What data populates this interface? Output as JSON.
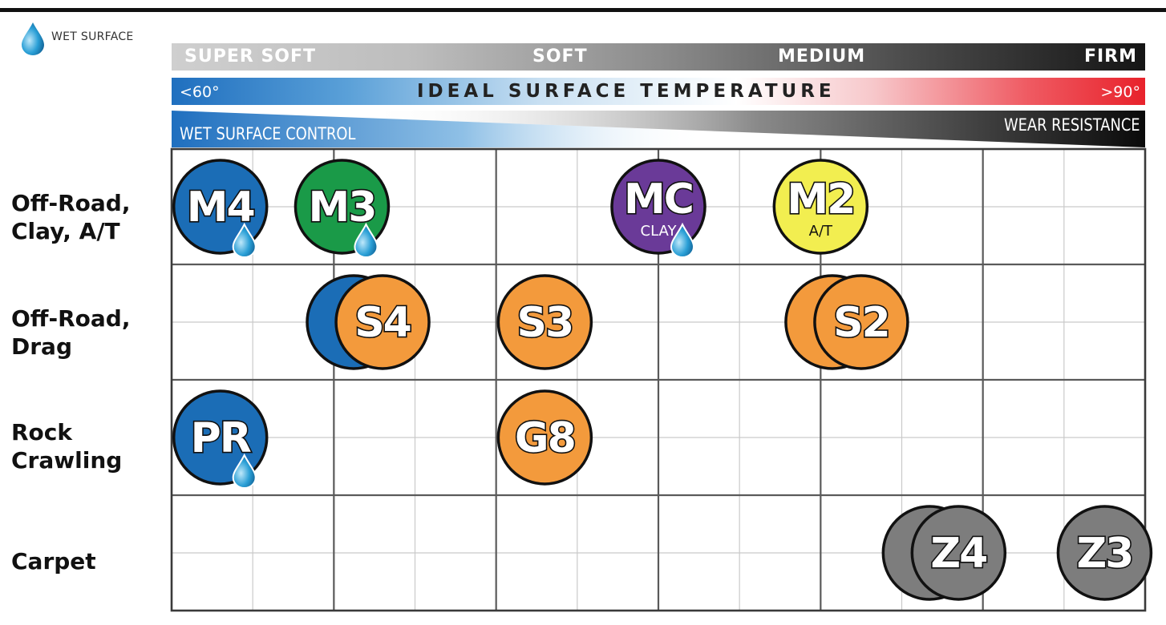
{
  "legend": {
    "label": "WET SURFACE",
    "icon": "water-drop-icon",
    "drop_color": "#2a9fd6"
  },
  "scale": {
    "firmness": [
      "SUPER SOFT",
      "SOFT",
      "MEDIUM",
      "FIRM"
    ],
    "temperature": {
      "low": "<60°",
      "title": "IDEAL SURFACE TEMPERATURE",
      "high": ">90°"
    },
    "wet_control": "WET SURFACE CONTROL",
    "wear_resistance": "WEAR RESISTANCE"
  },
  "rows": [
    {
      "label": "Off-Road,\nClay, A/T"
    },
    {
      "label": "Off-Road,\nDrag"
    },
    {
      "label": "Rock\nCrawling"
    },
    {
      "label": "Carpet"
    }
  ],
  "colors": {
    "blue": "#1b6db6",
    "green": "#1a9a48",
    "purple": "#6a3a98",
    "yellow": "#f2ee50",
    "orange": "#f39a3c",
    "gray": "#7d7d7d",
    "grid": "#5a5a5a"
  },
  "compounds": [
    {
      "row": 0,
      "col": 0.6,
      "code": "M4",
      "fill": "blue",
      "wet": true
    },
    {
      "row": 0,
      "col": 2.1,
      "code": "M3",
      "fill": "green",
      "wet": true
    },
    {
      "row": 0,
      "col": 6.0,
      "code": "MC",
      "sub": "CLAY",
      "fill": "purple",
      "wet": true
    },
    {
      "row": 0,
      "col": 8.0,
      "code": "M2",
      "sub": "A/T",
      "fill": "yellow",
      "wet": false
    },
    {
      "row": 1,
      "col": 2.6,
      "code": "S4",
      "fill": "orange",
      "back_fill": "blue",
      "wet": false
    },
    {
      "row": 1,
      "col": 4.6,
      "code": "S3",
      "fill": "orange",
      "wet": false
    },
    {
      "row": 1,
      "col": 8.5,
      "code": "S2",
      "fill": "orange",
      "back_fill": "orange",
      "wet": false
    },
    {
      "row": 2,
      "col": 0.6,
      "code": "PR",
      "fill": "blue",
      "wet": true
    },
    {
      "row": 2,
      "col": 4.6,
      "code": "G8",
      "fill": "orange",
      "wet": false
    },
    {
      "row": 3,
      "col": 9.7,
      "code": "Z4",
      "fill": "gray",
      "back_fill": "gray",
      "wet": false
    },
    {
      "row": 3,
      "col": 11.5,
      "code": "Z3",
      "fill": "gray",
      "wet": false
    }
  ]
}
